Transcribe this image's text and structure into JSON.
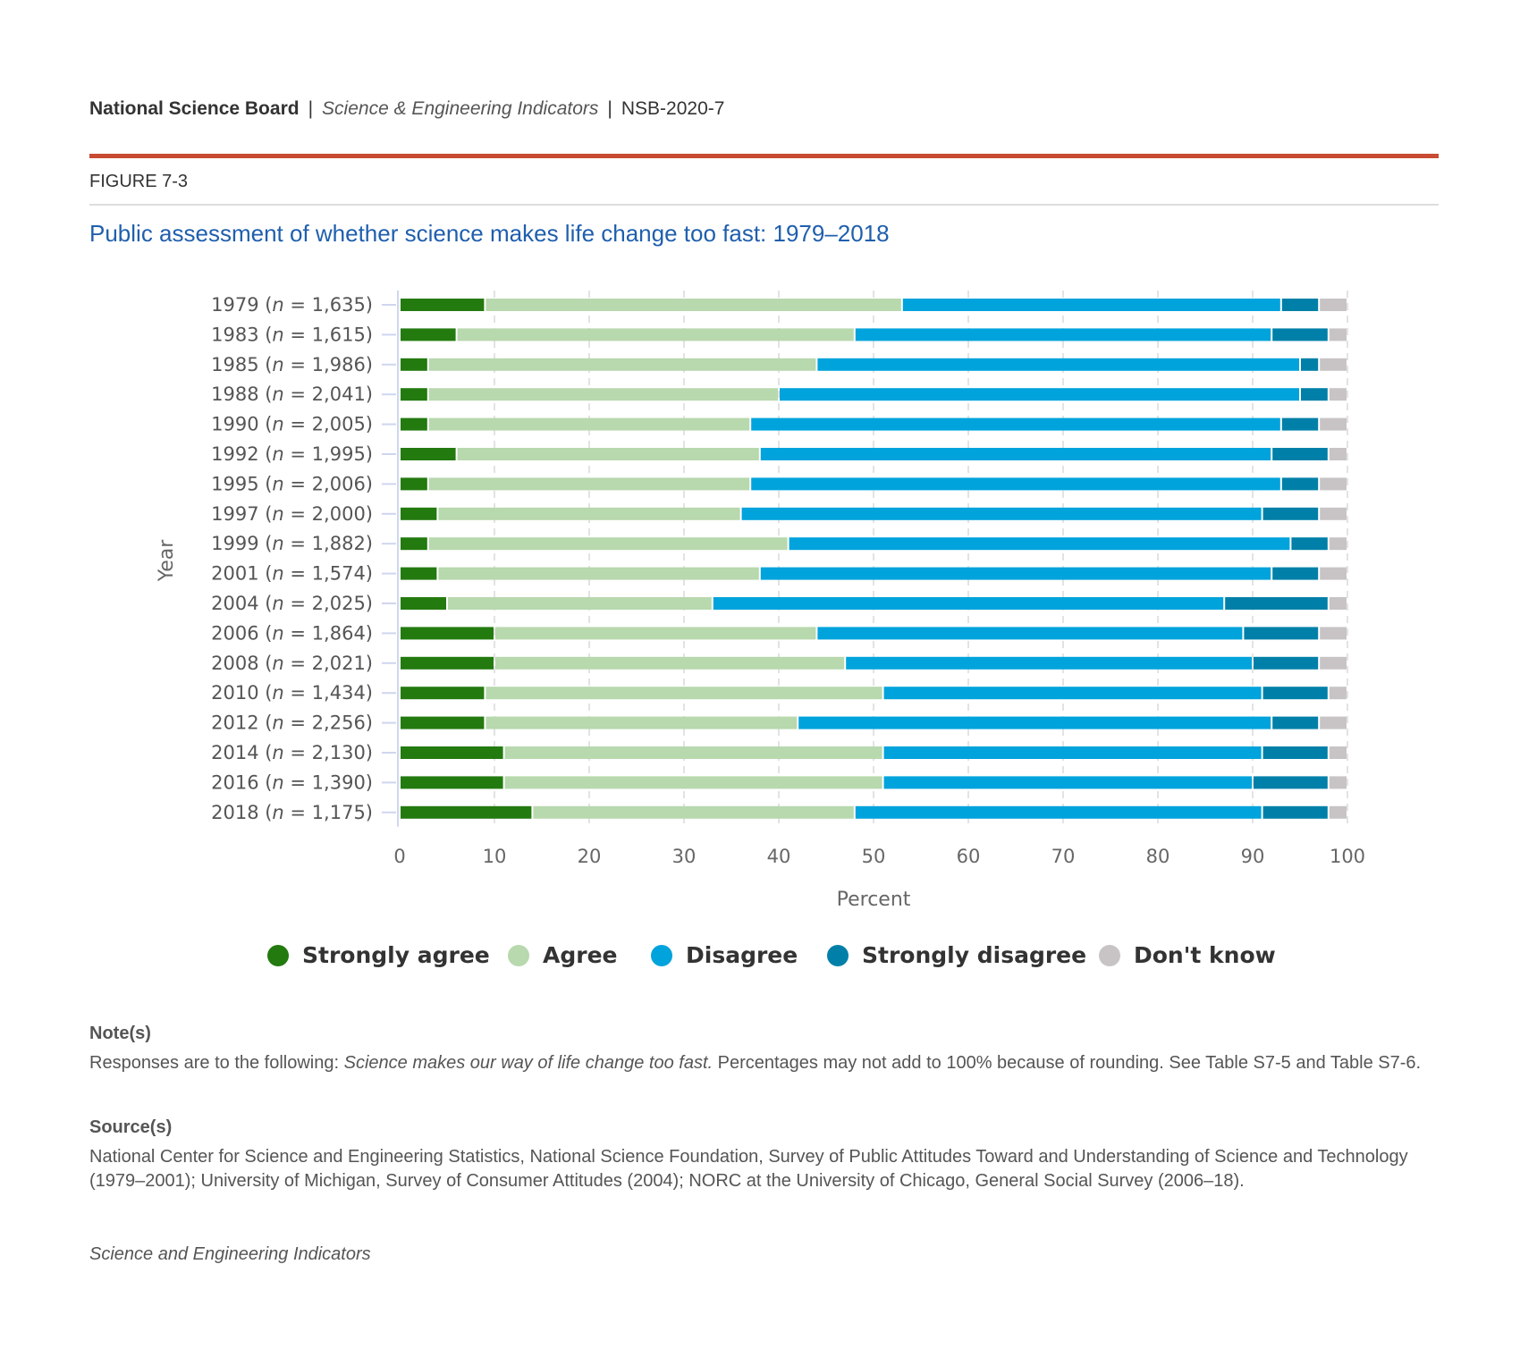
{
  "header": {
    "org": "National Science Board",
    "sep1": "|",
    "publication": "Science & Engineering Indicators",
    "sep2": "|",
    "report": "NSB-2020-7"
  },
  "figure_label": "FIGURE 7-3",
  "notes": {
    "heading": "Note(s)",
    "text_pre": "Responses are to the following: ",
    "text_italic": "Science makes our way of life change too fast.",
    "text_post": " Percentages may not add to 100% because of rounding. See Table S7-5 and Table S7-6."
  },
  "sources": {
    "heading": "Source(s)",
    "text": "National Center for Science and Engineering Statistics, National Science Foundation, Survey of Public Attitudes Toward and Understanding of Science and Technology (1979–2001); University of Michigan, Survey of Consumer Attitudes (2004); NORC at the University of Chicago, General Social Survey (2006–18)."
  },
  "footer": "Science and Engineering Indicators",
  "chart_data": {
    "type": "bar",
    "orientation": "horizontal-stacked",
    "title": "Public assessment of whether science makes life change too fast: 1979–2018",
    "xlabel": "Percent",
    "ylabel": "Year",
    "xlim": [
      0,
      100
    ],
    "xticks": [
      "0",
      "10",
      "20",
      "30",
      "40",
      "50",
      "60",
      "70",
      "80",
      "90",
      "100"
    ],
    "categories": [
      {
        "year": "1979",
        "n": "1,635"
      },
      {
        "year": "1983",
        "n": "1,615"
      },
      {
        "year": "1985",
        "n": "1,986"
      },
      {
        "year": "1988",
        "n": "2,041"
      },
      {
        "year": "1990",
        "n": "2,005"
      },
      {
        "year": "1992",
        "n": "1,995"
      },
      {
        "year": "1995",
        "n": "2,006"
      },
      {
        "year": "1997",
        "n": "2,000"
      },
      {
        "year": "1999",
        "n": "1,882"
      },
      {
        "year": "2001",
        "n": "1,574"
      },
      {
        "year": "2004",
        "n": "2,025"
      },
      {
        "year": "2006",
        "n": "1,864"
      },
      {
        "year": "2008",
        "n": "2,021"
      },
      {
        "year": "2010",
        "n": "1,434"
      },
      {
        "year": "2012",
        "n": "2,256"
      },
      {
        "year": "2014",
        "n": "2,130"
      },
      {
        "year": "2016",
        "n": "1,390"
      },
      {
        "year": "2018",
        "n": "1,175"
      }
    ],
    "series": [
      {
        "name": "Strongly agree",
        "color": "#237a0f",
        "values": [
          9,
          6,
          3,
          3,
          3,
          6,
          3,
          4,
          3,
          4,
          5,
          10,
          10,
          9,
          9,
          11,
          11,
          14
        ]
      },
      {
        "name": "Agree",
        "color": "#b8d8ae",
        "values": [
          44,
          42,
          41,
          37,
          34,
          32,
          34,
          32,
          38,
          34,
          28,
          34,
          37,
          42,
          33,
          40,
          40,
          34
        ]
      },
      {
        "name": "Disagree",
        "color": "#00a3dc",
        "values": [
          40,
          44,
          51,
          55,
          56,
          54,
          56,
          55,
          53,
          54,
          54,
          45,
          43,
          40,
          50,
          40,
          39,
          43
        ]
      },
      {
        "name": "Strongly disagree",
        "color": "#0080a8",
        "values": [
          4,
          6,
          2,
          3,
          4,
          6,
          4,
          6,
          4,
          5,
          11,
          8,
          7,
          7,
          5,
          7,
          8,
          7
        ]
      },
      {
        "name": "Don't know",
        "color": "#c8c4c6",
        "values": [
          3,
          2,
          3,
          2,
          3,
          2,
          3,
          3,
          2,
          3,
          2,
          3,
          3,
          2,
          3,
          2,
          2,
          2
        ]
      }
    ],
    "legend_position": "bottom",
    "grid": true
  }
}
